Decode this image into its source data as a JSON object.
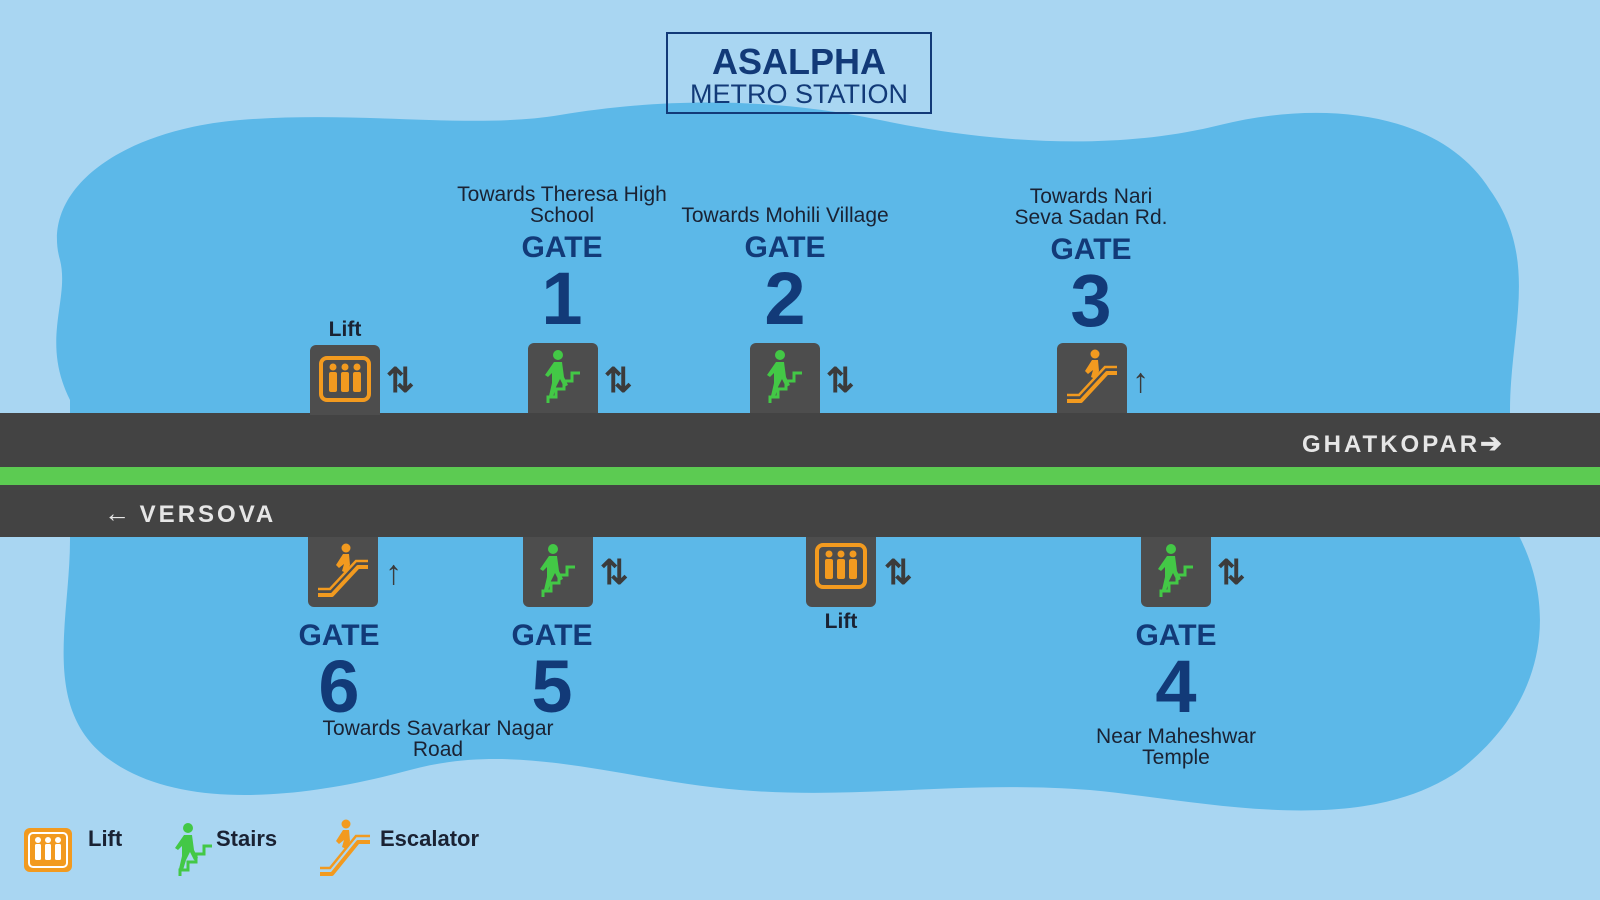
{
  "station": {
    "name": "ASALPHA",
    "subtitle": "METRO STATION"
  },
  "gate_word": "GATE",
  "gates": {
    "g1": {
      "number": "1",
      "dest_line1": "Towards Theresa High",
      "dest_line2": "School",
      "access": "stairs-icon",
      "direction": "⇅"
    },
    "g2": {
      "number": "2",
      "dest_line1": "",
      "dest_line2": "Towards Mohili Village",
      "access": "stairs-icon",
      "direction": "⇅"
    },
    "g3": {
      "number": "3",
      "dest_line1": "Towards Nari",
      "dest_line2": "Seva Sadan Rd.",
      "access": "escalator-icon",
      "direction": "↑"
    },
    "g4": {
      "number": "4",
      "dest_line1": "Near Maheshwar",
      "dest_line2": "Temple",
      "access": "stairs-icon",
      "direction": "⇅"
    },
    "g5": {
      "number": "5",
      "dest_line1": "",
      "dest_line2": "",
      "access": "stairs-icon",
      "direction": "⇅"
    },
    "g6": {
      "number": "6",
      "dest_line1": "Towards Savarkar Nagar",
      "dest_line2": "Road",
      "access": "escalator-icon",
      "direction": "↑"
    }
  },
  "lifts": {
    "top": {
      "label": "Lift",
      "direction": "⇅"
    },
    "bottom": {
      "label": "Lift",
      "direction": "⇅"
    }
  },
  "line": {
    "east": "GHATKOPAR",
    "east_arrow": "➔",
    "west": "VERSOVA",
    "west_arrow": "🡐",
    "color": "#5ccb52"
  },
  "legend": {
    "lift": "Lift",
    "stairs": "Stairs",
    "escalator": "Escalator"
  },
  "colors": {
    "navy": "#123a78",
    "lift_orange": "#f29a1f",
    "stairs_green": "#43c846",
    "track": "#434343",
    "water": "#5cb8e8",
    "background": "#a9d6f2"
  }
}
